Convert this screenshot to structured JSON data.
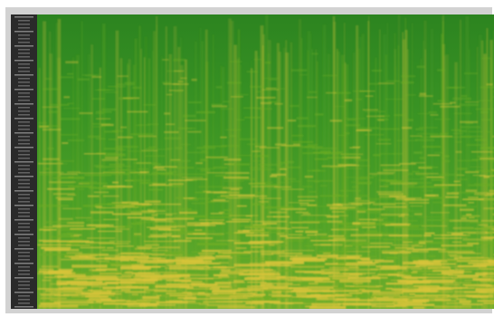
{
  "spectrogram": {
    "colors": {
      "frame": "#d2d2d2",
      "ruler_background": "#2a2a2a",
      "ruler_ticks": "#8a8a8a",
      "low_intensity": "#2f8a1f",
      "mid_intensity": "#6fae24",
      "high_intensity": "#d8c43a"
    },
    "ruler_icon": "frequency-scale"
  }
}
